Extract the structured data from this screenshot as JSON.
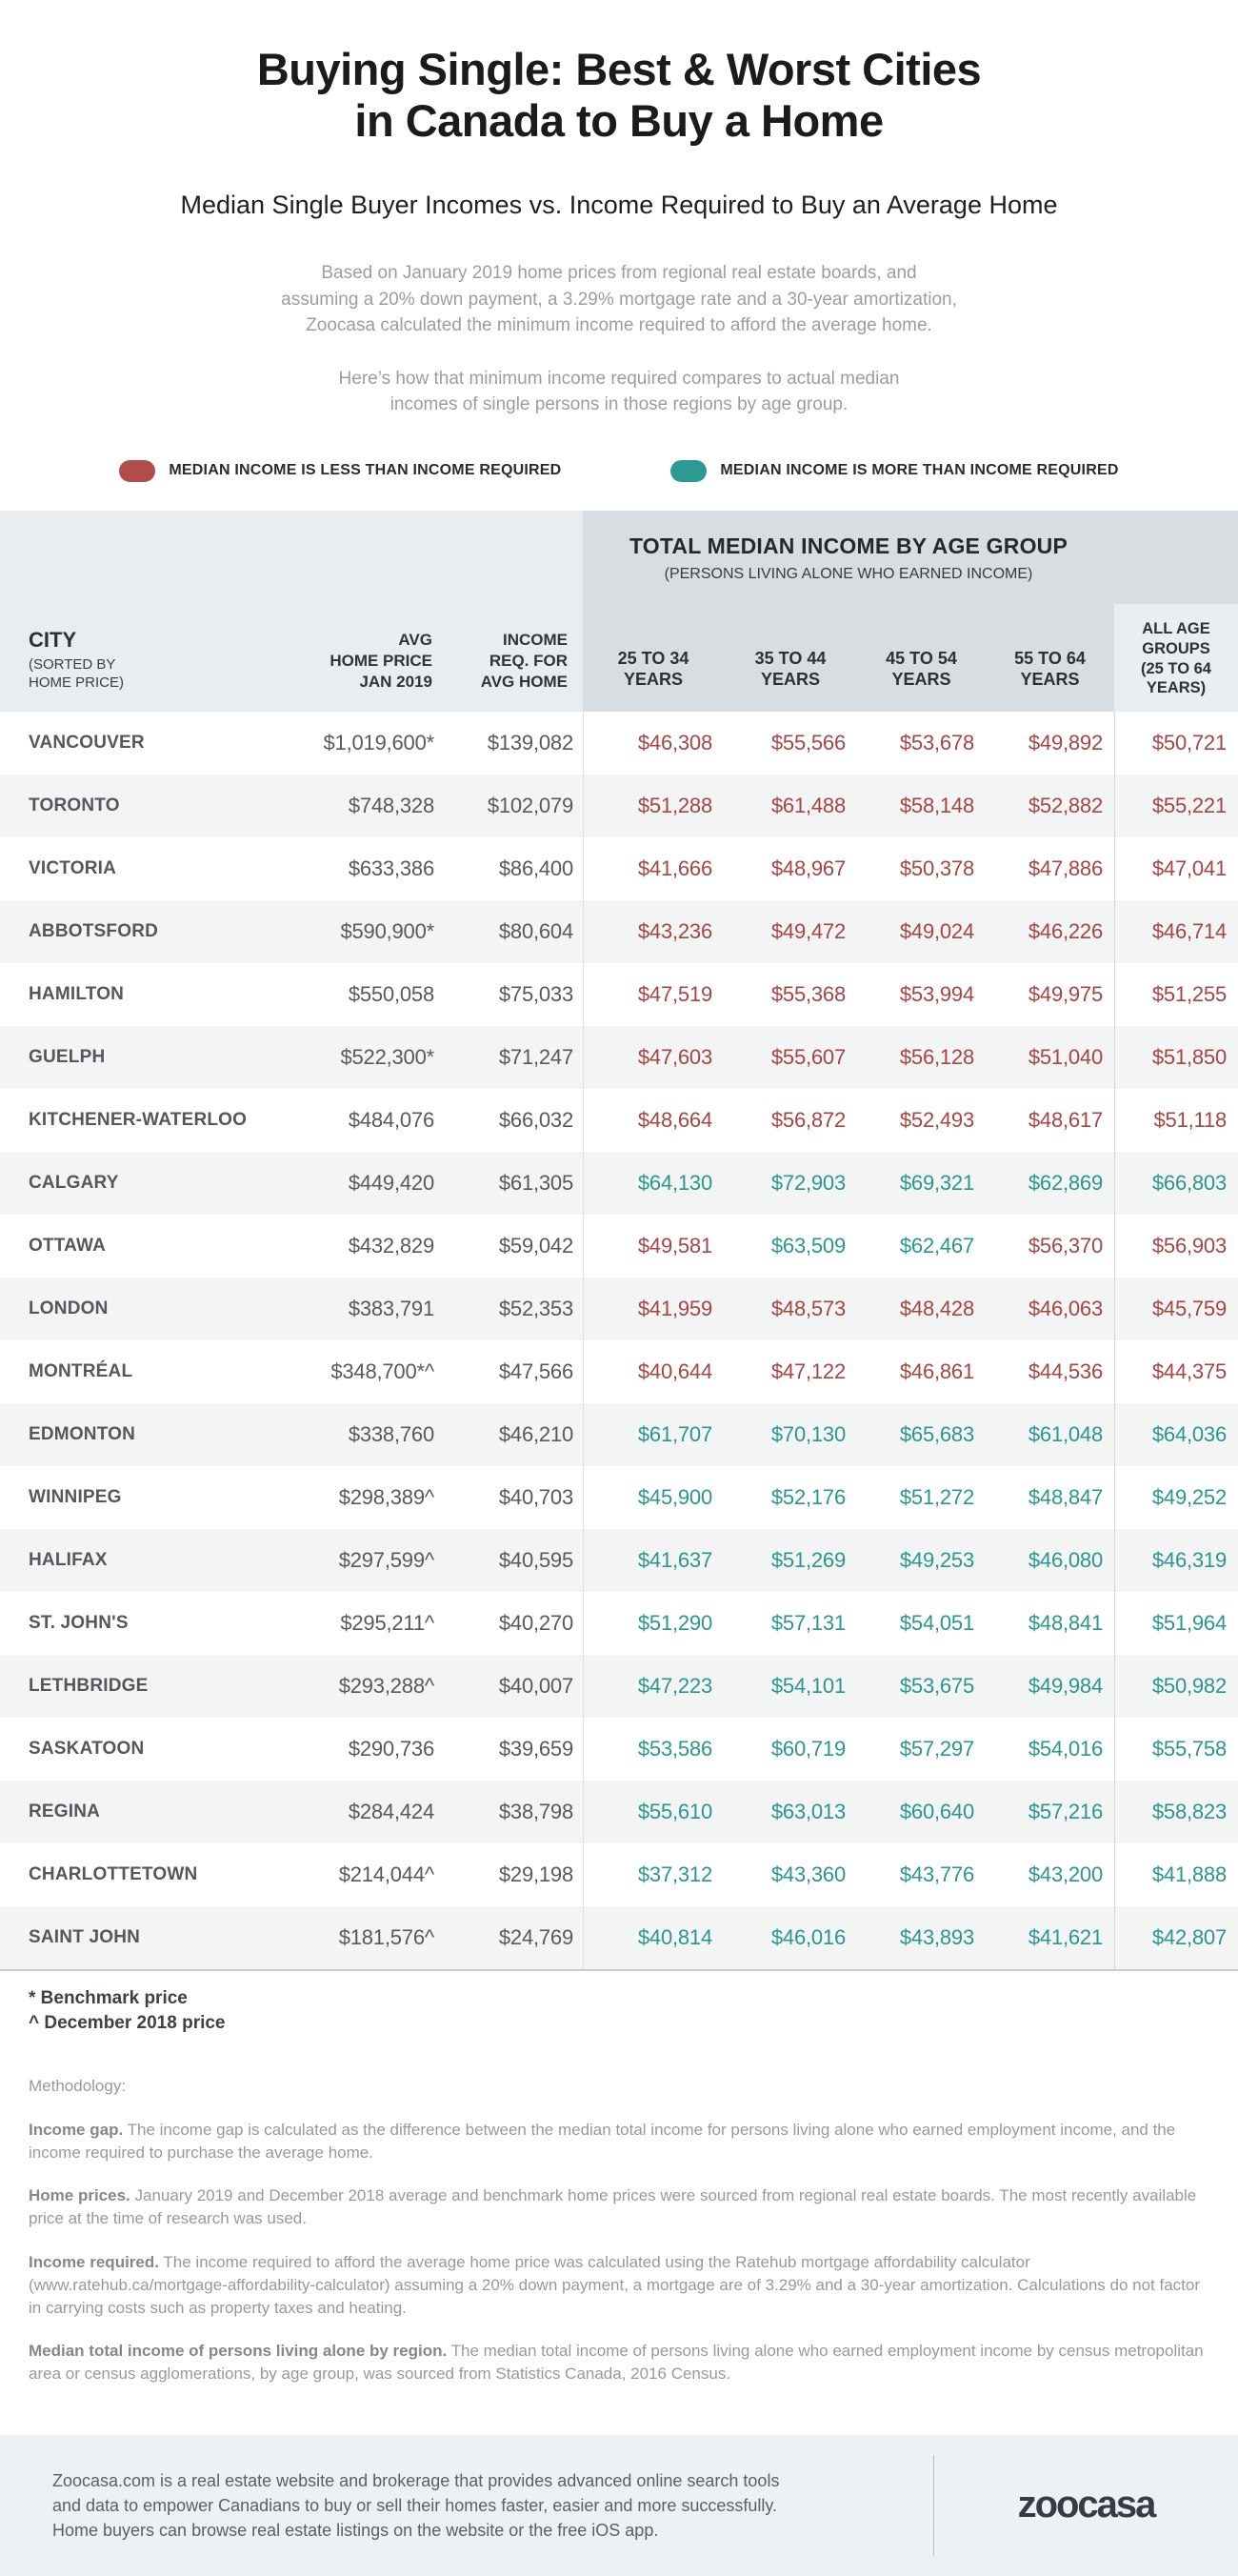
{
  "title": "Buying Single: Best & Worst Cities\nin Canada to Buy a Home",
  "subtitle": "Median Single Buyer Incomes vs. Income Required to Buy an Average Home",
  "intro": {
    "p1": "Based on January 2019 home prices from regional real estate boards, and\nassuming a 20% down payment, a 3.29% mortgage rate and a 30-year amortization,\nZoocasa calculated the minimum income required to afford the average home.",
    "p2": "Here’s how that minimum income required compares to actual median\nincomes of single persons in those regions by age group."
  },
  "legend": {
    "less_label": "MEDIAN INCOME IS LESS THAN INCOME REQUIRED",
    "more_label": "MEDIAN INCOME IS MORE THAN INCOME REQUIRED",
    "less_color": "#B04C49",
    "more_color": "#2B9A92"
  },
  "table": {
    "band_title": "TOTAL MEDIAN INCOME BY AGE GROUP",
    "band_subtitle": "(PERSONS LIVING ALONE WHO EARNED INCOME)",
    "col_city": "CITY",
    "col_city_sub": "(SORTED BY\nHOME PRICE)",
    "col_avg": "AVG\nHOME PRICE\nJAN 2019",
    "col_req": "INCOME\nREQ. FOR\nAVG HOME",
    "age_cols": [
      "25 TO 34\nYEARS",
      "35 TO 44\nYEARS",
      "45 TO 54\nYEARS",
      "55 TO 64\nYEARS"
    ],
    "col_all": "ALL AGE\nGROUPS\n(25 TO 64\nYEARS)"
  },
  "chart_data": {
    "type": "table",
    "title": "Buying Single: Best & Worst Cities in Canada to Buy a Home",
    "columns": [
      "CITY (SORTED BY HOME PRICE)",
      "AVG HOME PRICE JAN 2019",
      "INCOME REQ. FOR AVG HOME",
      "25 TO 34 YEARS",
      "35 TO 44 YEARS",
      "45 TO 54 YEARS",
      "55 TO 64 YEARS",
      "ALL AGE GROUPS (25 TO 64 YEARS)"
    ],
    "status_colors": {
      "less": "#A64541",
      "more": "#2B968E"
    },
    "rows": [
      {
        "city": "VANCOUVER",
        "avg": "$1,019,600*",
        "req": "$139,082",
        "incomes": [
          "$46,308",
          "$55,566",
          "$53,678",
          "$49,892",
          "$50,721"
        ],
        "status": [
          "less",
          "less",
          "less",
          "less",
          "less"
        ]
      },
      {
        "city": "TORONTO",
        "avg": "$748,328",
        "req": "$102,079",
        "incomes": [
          "$51,288",
          "$61,488",
          "$58,148",
          "$52,882",
          "$55,221"
        ],
        "status": [
          "less",
          "less",
          "less",
          "less",
          "less"
        ]
      },
      {
        "city": "VICTORIA",
        "avg": "$633,386",
        "req": "$86,400",
        "incomes": [
          "$41,666",
          "$48,967",
          "$50,378",
          "$47,886",
          "$47,041"
        ],
        "status": [
          "less",
          "less",
          "less",
          "less",
          "less"
        ]
      },
      {
        "city": "ABBOTSFORD",
        "avg": "$590,900*",
        "req": "$80,604",
        "incomes": [
          "$43,236",
          "$49,472",
          "$49,024",
          "$46,226",
          "$46,714"
        ],
        "status": [
          "less",
          "less",
          "less",
          "less",
          "less"
        ]
      },
      {
        "city": "HAMILTON",
        "avg": "$550,058",
        "req": "$75,033",
        "incomes": [
          "$47,519",
          "$55,368",
          "$53,994",
          "$49,975",
          "$51,255"
        ],
        "status": [
          "less",
          "less",
          "less",
          "less",
          "less"
        ]
      },
      {
        "city": "GUELPH",
        "avg": "$522,300*",
        "req": "$71,247",
        "incomes": [
          "$47,603",
          "$55,607",
          "$56,128",
          "$51,040",
          "$51,850"
        ],
        "status": [
          "less",
          "less",
          "less",
          "less",
          "less"
        ]
      },
      {
        "city": "KITCHENER-WATERLOO",
        "avg": "$484,076",
        "req": "$66,032",
        "incomes": [
          "$48,664",
          "$56,872",
          "$52,493",
          "$48,617",
          "$51,118"
        ],
        "status": [
          "less",
          "less",
          "less",
          "less",
          "less"
        ]
      },
      {
        "city": "CALGARY",
        "avg": "$449,420",
        "req": "$61,305",
        "incomes": [
          "$64,130",
          "$72,903",
          "$69,321",
          "$62,869",
          "$66,803"
        ],
        "status": [
          "more",
          "more",
          "more",
          "more",
          "more"
        ]
      },
      {
        "city": "OTTAWA",
        "avg": "$432,829",
        "req": "$59,042",
        "incomes": [
          "$49,581",
          "$63,509",
          "$62,467",
          "$56,370",
          "$56,903"
        ],
        "status": [
          "less",
          "more",
          "more",
          "less",
          "less"
        ]
      },
      {
        "city": "LONDON",
        "avg": "$383,791",
        "req": "$52,353",
        "incomes": [
          "$41,959",
          "$48,573",
          "$48,428",
          "$46,063",
          "$45,759"
        ],
        "status": [
          "less",
          "less",
          "less",
          "less",
          "less"
        ]
      },
      {
        "city": "MONTRÉAL",
        "avg": "$348,700*^",
        "req": "$47,566",
        "incomes": [
          "$40,644",
          "$47,122",
          "$46,861",
          "$44,536",
          "$44,375"
        ],
        "status": [
          "less",
          "less",
          "less",
          "less",
          "less"
        ]
      },
      {
        "city": "EDMONTON",
        "avg": "$338,760",
        "req": "$46,210",
        "incomes": [
          "$61,707",
          "$70,130",
          "$65,683",
          "$61,048",
          "$64,036"
        ],
        "status": [
          "more",
          "more",
          "more",
          "more",
          "more"
        ]
      },
      {
        "city": "WINNIPEG",
        "avg": "$298,389^",
        "req": "$40,703",
        "incomes": [
          "$45,900",
          "$52,176",
          "$51,272",
          "$48,847",
          "$49,252"
        ],
        "status": [
          "more",
          "more",
          "more",
          "more",
          "more"
        ]
      },
      {
        "city": "HALIFAX",
        "avg": "$297,599^",
        "req": "$40,595",
        "incomes": [
          "$41,637",
          "$51,269",
          "$49,253",
          "$46,080",
          "$46,319"
        ],
        "status": [
          "more",
          "more",
          "more",
          "more",
          "more"
        ]
      },
      {
        "city": "ST. JOHN'S",
        "avg": "$295,211^",
        "req": "$40,270",
        "incomes": [
          "$51,290",
          "$57,131",
          "$54,051",
          "$48,841",
          "$51,964"
        ],
        "status": [
          "more",
          "more",
          "more",
          "more",
          "more"
        ]
      },
      {
        "city": "LETHBRIDGE",
        "avg": "$293,288^",
        "req": "$40,007",
        "incomes": [
          "$47,223",
          "$54,101",
          "$53,675",
          "$49,984",
          "$50,982"
        ],
        "status": [
          "more",
          "more",
          "more",
          "more",
          "more"
        ]
      },
      {
        "city": "SASKATOON",
        "avg": "$290,736",
        "req": "$39,659",
        "incomes": [
          "$53,586",
          "$60,719",
          "$57,297",
          "$54,016",
          "$55,758"
        ],
        "status": [
          "more",
          "more",
          "more",
          "more",
          "more"
        ]
      },
      {
        "city": "REGINA",
        "avg": "$284,424",
        "req": "$38,798",
        "incomes": [
          "$55,610",
          "$63,013",
          "$60,640",
          "$57,216",
          "$58,823"
        ],
        "status": [
          "more",
          "more",
          "more",
          "more",
          "more"
        ]
      },
      {
        "city": "CHARLOTTETOWN",
        "avg": "$214,044^",
        "req": "$29,198",
        "incomes": [
          "$37,312",
          "$43,360",
          "$43,776",
          "$43,200",
          "$41,888"
        ],
        "status": [
          "more",
          "more",
          "more",
          "more",
          "more"
        ]
      },
      {
        "city": "SAINT JOHN",
        "avg": "$181,576^",
        "req": "$24,769",
        "incomes": [
          "$40,814",
          "$46,016",
          "$43,893",
          "$41,621",
          "$42,807"
        ],
        "status": [
          "more",
          "more",
          "more",
          "more",
          "more"
        ]
      }
    ]
  },
  "footnotes": {
    "benchmark": "* Benchmark price",
    "december": "^ December 2018 price"
  },
  "methodology": {
    "heading": "Methodology:",
    "p1_lead": "Income gap.",
    "p1_text": " The income gap is calculated as the difference between the median total income for persons living alone who earned employment income, and the income required to purchase the average home.",
    "p2_lead": "Home prices.",
    "p2_text": " January 2019 and December 2018 average and benchmark home prices were sourced from regional real estate boards. The most recently available price at the time of research was used.",
    "p3_lead": "Income required.",
    "p3_text": " The income required to afford the average home price was calculated using the Ratehub mortgage affordability calculator (www.ratehub.ca/mortgage-affordability-calculator) assuming a 20% down payment, a mortgage are of 3.29% and a 30-year amortization. Calculations do not factor in carrying costs such as property taxes and heating.",
    "p4_lead": "Median total income of persons living alone by region.",
    "p4_text": " The median total income of persons living alone who earned employment income by census metropolitan area or census agglomerations, by age group, was sourced from Statistics Canada, 2016 Census."
  },
  "footer": {
    "text": "Zoocasa.com is a real estate website and brokerage that provides advanced online search tools\nand data to empower Canadians to buy or sell their homes faster, easier and more successfully.\nHome buyers can browse real estate listings on the website or the free iOS app.",
    "logo": "zoocasa"
  }
}
